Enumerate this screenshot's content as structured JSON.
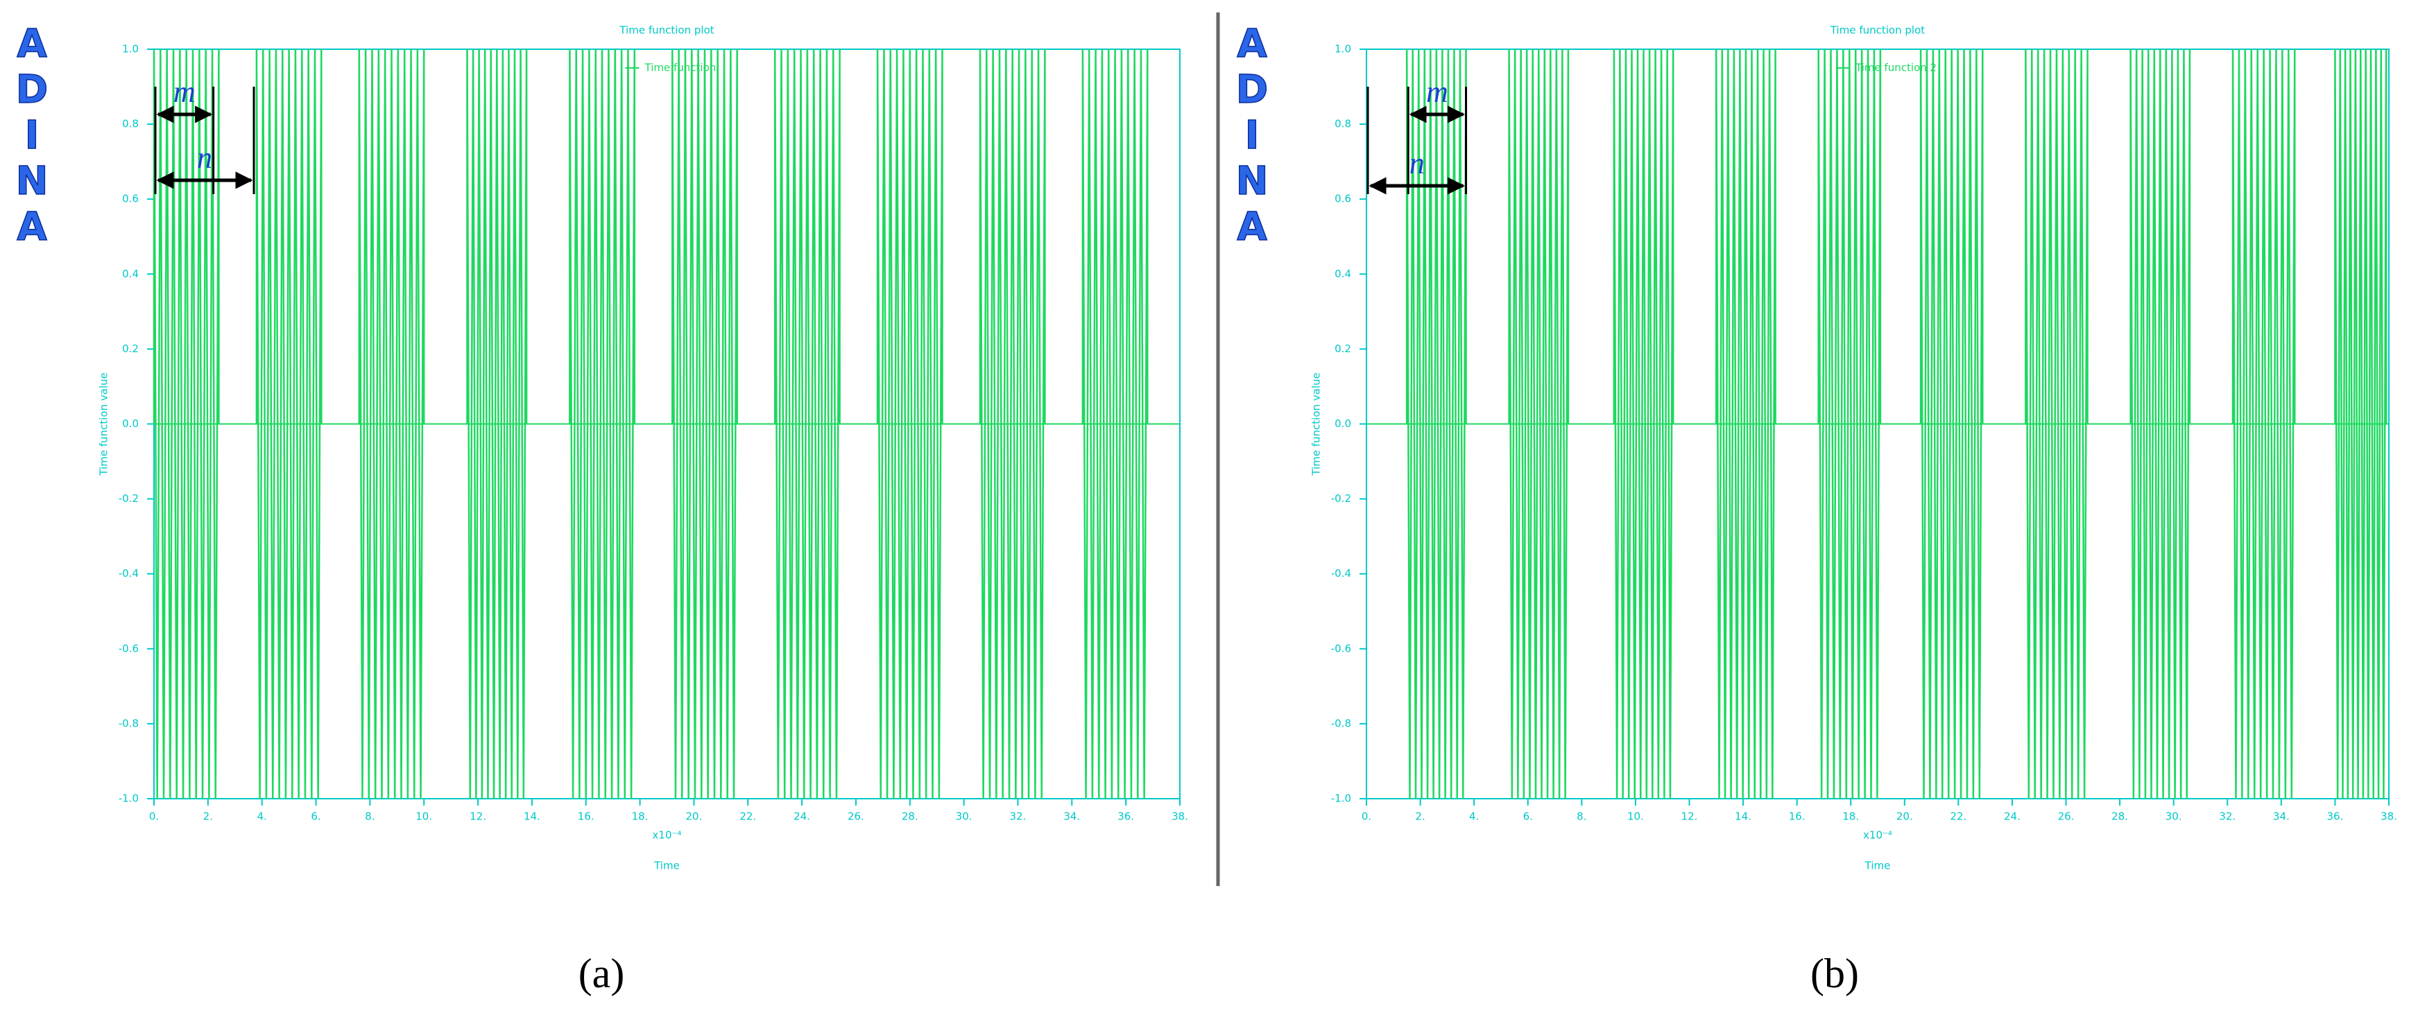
{
  "chart_data": [
    {
      "type": "burst",
      "title": "Time function plot",
      "legend": "Time function",
      "x_label": "Time",
      "x_multiplier": "x10⁻⁴",
      "y_label": "Time function value",
      "logo": [
        "A",
        "D",
        "I",
        "N",
        "A"
      ],
      "annotations": [
        "m",
        "n"
      ],
      "caption": "(a)",
      "color": "#1ed860",
      "axis_color": "#00c8c8",
      "amplitude": 1,
      "bursts": [
        {
          "start": 0,
          "end": 2.4
        },
        {
          "start": 3.8,
          "end": 6.2
        },
        {
          "start": 7.6,
          "end": 10
        },
        {
          "start": 11.6,
          "end": 13.8
        },
        {
          "start": 15.4,
          "end": 17.8
        },
        {
          "start": 19.2,
          "end": 21.6
        },
        {
          "start": 23,
          "end": 25.4
        },
        {
          "start": 26.8,
          "end": 29.2
        },
        {
          "start": 30.6,
          "end": 33
        },
        {
          "start": 34.4,
          "end": 36.8
        }
      ],
      "xlim": [
        0,
        38
      ],
      "ylim": [
        -1,
        1
      ],
      "xticks": [
        {
          "value": 0,
          "label": "0."
        },
        {
          "value": 2,
          "label": "2."
        },
        {
          "value": 4,
          "label": "4."
        },
        {
          "value": 6,
          "label": "6."
        },
        {
          "value": 8,
          "label": "8."
        },
        {
          "value": 10,
          "label": "10."
        },
        {
          "value": 12,
          "label": "12."
        },
        {
          "value": 14,
          "label": "14."
        },
        {
          "value": 16,
          "label": "16."
        },
        {
          "value": 18,
          "label": "18."
        },
        {
          "value": 20,
          "label": "20."
        },
        {
          "value": 22,
          "label": "22."
        },
        {
          "value": 24,
          "label": "24."
        },
        {
          "value": 26,
          "label": "26."
        },
        {
          "value": 28,
          "label": "28."
        },
        {
          "value": 30,
          "label": "30."
        },
        {
          "value": 32,
          "label": "32."
        },
        {
          "value": 34,
          "label": "34."
        },
        {
          "value": 36,
          "label": "36."
        },
        {
          "value": 38,
          "label": "38."
        }
      ],
      "yticks": [
        {
          "value": -1,
          "label": "-1.0"
        },
        {
          "value": -0.8,
          "label": "-0.8"
        },
        {
          "value": -0.6,
          "label": "-0.6"
        },
        {
          "value": -0.4,
          "label": "-0.4"
        },
        {
          "value": -0.2,
          "label": "-0.2"
        },
        {
          "value": 0,
          "label": "0.0"
        },
        {
          "value": 0.2,
          "label": "0.2"
        },
        {
          "value": 0.4,
          "label": "0.4"
        },
        {
          "value": 0.6,
          "label": "0.6"
        },
        {
          "value": 0.8,
          "label": "0.8"
        },
        {
          "value": 1,
          "label": "1.0"
        }
      ]
    },
    {
      "type": "burst",
      "title": "Time function plot",
      "legend": "Time function 2",
      "x_label": "Time",
      "x_multiplier": "x10⁻⁴",
      "y_label": "Time function value",
      "logo": [
        "A",
        "D",
        "I",
        "N",
        "A"
      ],
      "annotations": [
        "m",
        "n"
      ],
      "caption": "(b)",
      "color": "#1ed860",
      "axis_color": "#00c8c8",
      "amplitude": 1,
      "bursts": [
        {
          "start": 1.5,
          "end": 3.7
        },
        {
          "start": 5.3,
          "end": 7.5
        },
        {
          "start": 9.2,
          "end": 11.4
        },
        {
          "start": 13,
          "end": 15.2
        },
        {
          "start": 16.8,
          "end": 19.1
        },
        {
          "start": 20.6,
          "end": 22.9
        },
        {
          "start": 24.5,
          "end": 26.8
        },
        {
          "start": 28.4,
          "end": 30.6
        },
        {
          "start": 32.2,
          "end": 34.5
        },
        {
          "start": 36,
          "end": 37.9
        }
      ],
      "xlim": [
        0,
        38
      ],
      "ylim": [
        -1,
        1
      ],
      "xticks": [
        {
          "value": 0,
          "label": "0."
        },
        {
          "value": 2,
          "label": "2."
        },
        {
          "value": 4,
          "label": "4."
        },
        {
          "value": 6,
          "label": "6."
        },
        {
          "value": 8,
          "label": "8."
        },
        {
          "value": 10,
          "label": "10."
        },
        {
          "value": 12,
          "label": "12."
        },
        {
          "value": 14,
          "label": "14."
        },
        {
          "value": 16,
          "label": "16."
        },
        {
          "value": 18,
          "label": "18."
        },
        {
          "value": 20,
          "label": "20."
        },
        {
          "value": 22,
          "label": "22."
        },
        {
          "value": 24,
          "label": "24."
        },
        {
          "value": 26,
          "label": "26."
        },
        {
          "value": 28,
          "label": "28."
        },
        {
          "value": 30,
          "label": "30."
        },
        {
          "value": 32,
          "label": "32."
        },
        {
          "value": 34,
          "label": "34."
        },
        {
          "value": 36,
          "label": "36."
        },
        {
          "value": 38,
          "label": "38."
        }
      ],
      "yticks": [
        {
          "value": -1,
          "label": "-1.0"
        },
        {
          "value": -0.8,
          "label": "-0.8"
        },
        {
          "value": -0.6,
          "label": "-0.6"
        },
        {
          "value": -0.4,
          "label": "-0.4"
        },
        {
          "value": -0.2,
          "label": "-0.2"
        },
        {
          "value": 0,
          "label": "0.0"
        },
        {
          "value": 0.2,
          "label": "0.2"
        },
        {
          "value": 0.4,
          "label": "0.4"
        },
        {
          "value": 0.6,
          "label": "0.6"
        },
        {
          "value": 0.8,
          "label": "0.8"
        },
        {
          "value": 1,
          "label": "1.0"
        }
      ]
    }
  ]
}
